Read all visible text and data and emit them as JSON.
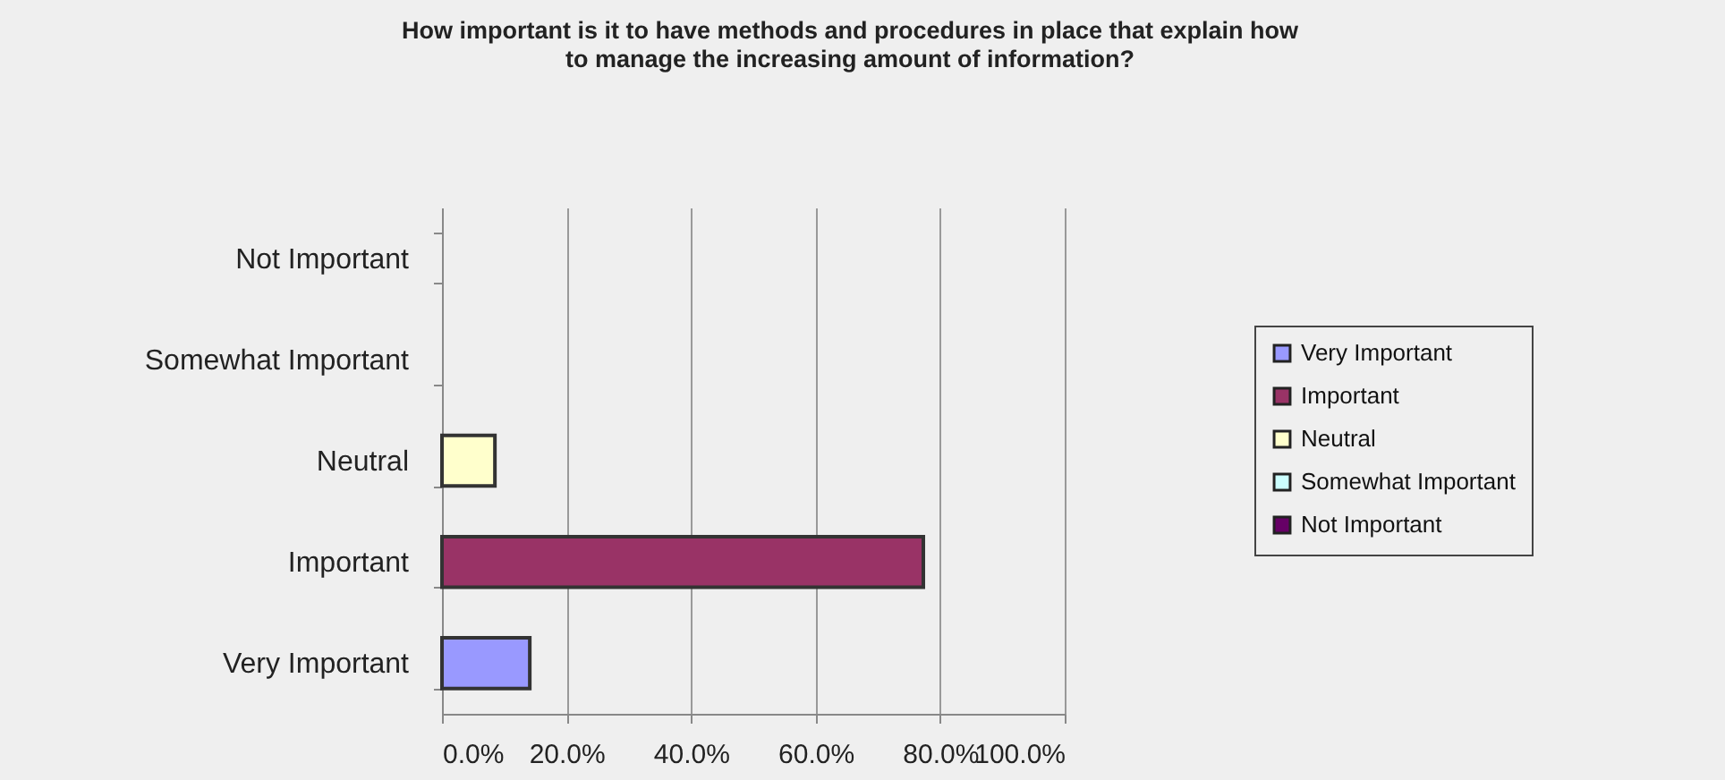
{
  "chart_data": {
    "type": "bar",
    "orientation": "horizontal",
    "title": "How important is it to have methods and procedures in place that explain how\nto manage the increasing amount of information?",
    "categories": [
      "Not Important",
      "Somewhat Important",
      "Neutral",
      "Important",
      "Very Important"
    ],
    "series": [
      {
        "name": "Very Important",
        "color": "#9999ff",
        "values": [
          null,
          null,
          null,
          null,
          14.1
        ]
      },
      {
        "name": "Important",
        "color": "#993366",
        "values": [
          null,
          null,
          null,
          77.3,
          null
        ]
      },
      {
        "name": "Neutral",
        "color": "#ffffcc",
        "values": [
          null,
          null,
          8.5,
          null,
          null
        ]
      },
      {
        "name": "Somewhat Important",
        "color": "#ccffff",
        "values": [
          null,
          0,
          null,
          null,
          null
        ]
      },
      {
        "name": "Not Important",
        "color": "#660066",
        "values": [
          0,
          null,
          null,
          null,
          null
        ]
      }
    ],
    "xlim": [
      0,
      100
    ],
    "xticks": [
      {
        "value": 0,
        "label": "0.0%"
      },
      {
        "value": 20,
        "label": "20.0%"
      },
      {
        "value": 40,
        "label": "40.0%"
      },
      {
        "value": 60,
        "label": "60.0%"
      },
      {
        "value": 80,
        "label": "80.0%"
      },
      {
        "value": 100,
        "label": "100.0%"
      }
    ],
    "grid": "x",
    "legend": "right"
  }
}
